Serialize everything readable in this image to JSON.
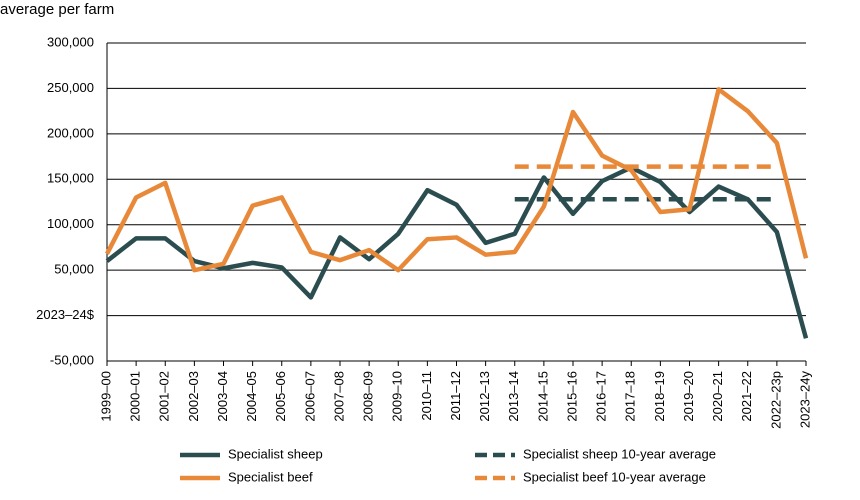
{
  "chart_data": {
    "type": "line",
    "title": "average per farm",
    "categories": [
      "1999–00",
      "2000–01",
      "2001–02",
      "2002–03",
      "2003–04",
      "2004–05",
      "2005–06",
      "2006–07",
      "2007–08",
      "2008–09",
      "2009–10",
      "2010–11",
      "2011–12",
      "2012–13",
      "2013–14",
      "2014–15",
      "2015–16",
      "2016–17",
      "2017–18",
      "2018–19",
      "2019–20",
      "2020–21",
      "2021–22",
      "2022–23p",
      "2023–24y"
    ],
    "series": [
      {
        "name": "Specialist sheep",
        "color": "#2b4d4f",
        "dashed": false,
        "values": [
          60000,
          85000,
          85000,
          60000,
          52000,
          58000,
          53000,
          20000,
          86000,
          62000,
          90000,
          138000,
          122000,
          80000,
          90000,
          152000,
          112000,
          148000,
          163000,
          147000,
          114000,
          142000,
          128000,
          92000,
          -25000
        ]
      },
      {
        "name": "Specialist sheep 10-year average",
        "color": "#2b4d4f",
        "dashed": true,
        "values": [
          null,
          null,
          null,
          null,
          null,
          null,
          null,
          null,
          null,
          null,
          null,
          null,
          null,
          null,
          128000,
          128000,
          128000,
          128000,
          128000,
          128000,
          128000,
          128000,
          128000,
          128000,
          null
        ]
      },
      {
        "name": "Specialist beef",
        "color": "#e8893a",
        "dashed": false,
        "values": [
          68000,
          130000,
          146000,
          50000,
          57000,
          121000,
          130000,
          70000,
          61000,
          72000,
          50000,
          84000,
          86000,
          67000,
          70000,
          120000,
          224000,
          176000,
          160000,
          114000,
          117000,
          249000,
          225000,
          190000,
          63000
        ]
      },
      {
        "name": "Specialist beef 10-year average",
        "color": "#e8893a",
        "dashed": true,
        "values": [
          null,
          null,
          null,
          null,
          null,
          null,
          null,
          null,
          null,
          null,
          null,
          null,
          null,
          null,
          164000,
          164000,
          164000,
          164000,
          164000,
          164000,
          164000,
          164000,
          164000,
          164000,
          null
        ]
      }
    ],
    "ylim": [
      -50000,
      300000
    ],
    "yticks": [
      {
        "value": -50000,
        "label": "-50,000"
      },
      {
        "value": 0,
        "label": "2023–24$"
      },
      {
        "value": 50000,
        "label": "50,000"
      },
      {
        "value": 100000,
        "label": "100,000"
      },
      {
        "value": 150000,
        "label": "150,000"
      },
      {
        "value": 200000,
        "label": "200,000"
      },
      {
        "value": 250000,
        "label": "250,000"
      },
      {
        "value": 300000,
        "label": "300,000"
      }
    ],
    "grid": true
  }
}
